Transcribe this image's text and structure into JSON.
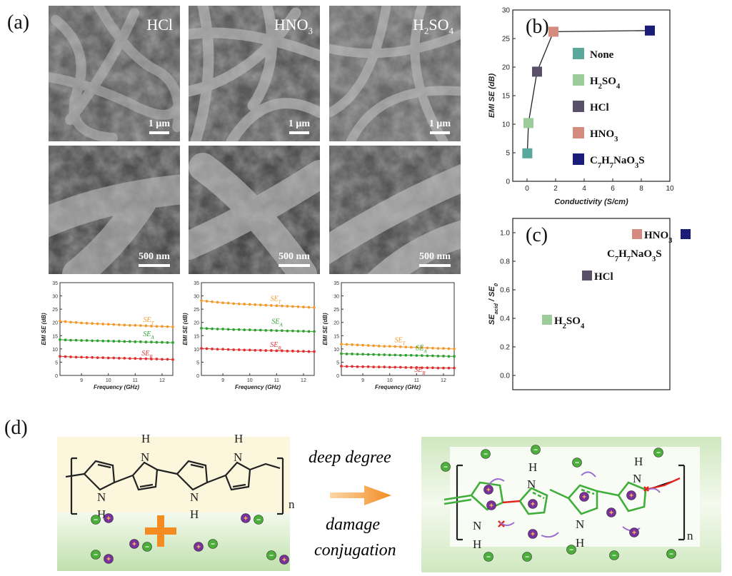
{
  "panel_labels": {
    "a": "(a)",
    "b": "(b)",
    "c": "(c)",
    "d": "(d)"
  },
  "sem": {
    "top_labels": [
      "HCl",
      "HNO",
      "H",
      "SO"
    ],
    "scale_top": "1 μm",
    "scale_mid": "500 nm"
  },
  "chart_data": [
    {
      "type": "line",
      "title": "",
      "xlabel": "Frequency (GHz)",
      "ylabel": "EMI SE (dB)",
      "xlim": [
        8.2,
        12.4
      ],
      "ylim": [
        0,
        35
      ],
      "xticks": [
        9,
        10,
        11,
        12
      ],
      "yticks": [
        0,
        5,
        10,
        15,
        20,
        25,
        30,
        35
      ],
      "x": [
        8.2,
        8.4,
        8.6,
        8.8,
        9.0,
        9.2,
        9.4,
        9.6,
        9.8,
        10.0,
        10.2,
        10.4,
        10.6,
        10.8,
        11.0,
        11.2,
        11.4,
        11.6,
        11.8,
        12.0,
        12.2,
        12.4
      ],
      "series": [
        {
          "name": "SE_T",
          "color": "#f39a2e",
          "values": [
            20.5,
            20.3,
            20.1,
            20.0,
            19.8,
            19.7,
            19.6,
            19.5,
            19.4,
            19.3,
            19.2,
            19.1,
            19.0,
            18.9,
            18.9,
            18.8,
            18.7,
            18.6,
            18.5,
            18.5,
            18.4,
            18.3
          ]
        },
        {
          "name": "SE_A",
          "color": "#2fa12f",
          "values": [
            13.5,
            13.4,
            13.3,
            13.3,
            13.2,
            13.2,
            13.1,
            13.1,
            13.0,
            13.0,
            12.9,
            12.9,
            12.8,
            12.8,
            12.7,
            12.7,
            12.6,
            12.6,
            12.5,
            12.5,
            12.4,
            12.4
          ]
        },
        {
          "name": "SE_R",
          "color": "#e03030",
          "values": [
            7.2,
            7.1,
            7.0,
            6.9,
            6.9,
            6.8,
            6.8,
            6.7,
            6.7,
            6.6,
            6.6,
            6.5,
            6.5,
            6.4,
            6.4,
            6.3,
            6.3,
            6.2,
            6.2,
            6.1,
            6.1,
            6.0
          ]
        }
      ]
    },
    {
      "type": "line",
      "title": "",
      "xlabel": "Frequency (GHz)",
      "ylabel": "EMI SE (dB)",
      "xlim": [
        8.2,
        12.4
      ],
      "ylim": [
        0,
        35
      ],
      "xticks": [
        9,
        10,
        11,
        12
      ],
      "yticks": [
        0,
        5,
        10,
        15,
        20,
        25,
        30,
        35
      ],
      "x": [
        8.2,
        8.4,
        8.6,
        8.8,
        9.0,
        9.2,
        9.4,
        9.6,
        9.8,
        10.0,
        10.2,
        10.4,
        10.6,
        10.8,
        11.0,
        11.2,
        11.4,
        11.6,
        11.8,
        12.0,
        12.2,
        12.4
      ],
      "series": [
        {
          "name": "SE_T",
          "color": "#f39a2e",
          "values": [
            28.2,
            28.0,
            27.8,
            27.6,
            27.4,
            27.3,
            27.1,
            27.0,
            26.9,
            26.8,
            26.7,
            26.6,
            26.5,
            26.4,
            26.3,
            26.2,
            26.1,
            26.0,
            25.9,
            25.8,
            25.7,
            25.6
          ]
        },
        {
          "name": "SE_A",
          "color": "#2fa12f",
          "values": [
            17.8,
            17.7,
            17.6,
            17.5,
            17.5,
            17.4,
            17.3,
            17.3,
            17.2,
            17.2,
            17.1,
            17.1,
            17.0,
            17.0,
            16.9,
            16.9,
            16.8,
            16.8,
            16.7,
            16.7,
            16.6,
            16.6
          ]
        },
        {
          "name": "SE_R",
          "color": "#e03030",
          "values": [
            10.2,
            10.1,
            10.0,
            9.9,
            9.9,
            9.8,
            9.7,
            9.7,
            9.6,
            9.6,
            9.5,
            9.5,
            9.4,
            9.4,
            9.3,
            9.3,
            9.2,
            9.2,
            9.1,
            9.1,
            9.0,
            9.0
          ]
        }
      ]
    },
    {
      "type": "line",
      "title": "",
      "xlabel": "Frequency (GHz)",
      "ylabel": "EMI SE (dB)",
      "xlim": [
        8.2,
        12.4
      ],
      "ylim": [
        0,
        35
      ],
      "xticks": [
        9,
        10,
        11,
        12
      ],
      "yticks": [
        0,
        5,
        10,
        15,
        20,
        25,
        30,
        35
      ],
      "x": [
        8.2,
        8.4,
        8.6,
        8.8,
        9.0,
        9.2,
        9.4,
        9.6,
        9.8,
        10.0,
        10.2,
        10.4,
        10.6,
        10.8,
        11.0,
        11.2,
        11.4,
        11.6,
        11.8,
        12.0,
        12.2,
        12.4
      ],
      "series": [
        {
          "name": "SE_T",
          "color": "#f39a2e",
          "values": [
            11.8,
            11.7,
            11.6,
            11.5,
            11.4,
            11.3,
            11.2,
            11.1,
            11.0,
            11.0,
            10.9,
            10.8,
            10.7,
            10.6,
            10.6,
            10.5,
            10.4,
            10.3,
            10.2,
            10.2,
            10.1,
            10.0
          ]
        },
        {
          "name": "SE_A",
          "color": "#2fa12f",
          "values": [
            8.2,
            8.1,
            8.1,
            8.0,
            8.0,
            7.9,
            7.9,
            7.8,
            7.8,
            7.7,
            7.7,
            7.6,
            7.6,
            7.6,
            7.5,
            7.5,
            7.4,
            7.4,
            7.3,
            7.3,
            7.2,
            7.2
          ]
        },
        {
          "name": "SE_R",
          "color": "#e03030",
          "values": [
            3.5,
            3.4,
            3.4,
            3.3,
            3.3,
            3.3,
            3.2,
            3.2,
            3.2,
            3.1,
            3.1,
            3.1,
            3.0,
            3.0,
            3.0,
            2.9,
            2.9,
            2.9,
            2.8,
            2.8,
            2.8,
            2.8
          ]
        }
      ]
    },
    {
      "type": "scatter",
      "title": "",
      "xlabel": "Conductivity (S/cm)",
      "ylabel": "EMI SE (dB)",
      "xlim": [
        -1,
        10
      ],
      "ylim": [
        0,
        30
      ],
      "xticks": [
        0,
        2,
        4,
        6,
        8,
        10
      ],
      "yticks": [
        0,
        5,
        10,
        15,
        20,
        25,
        30
      ],
      "points": [
        {
          "name": "None",
          "x": 0.02,
          "y": 4.9,
          "color": "#5aa89c"
        },
        {
          "name": "H2SO4",
          "x": 0.1,
          "y": 10.2,
          "color": "#9ccc9a"
        },
        {
          "name": "HCl",
          "x": 0.7,
          "y": 19.2,
          "color": "#575068"
        },
        {
          "name": "HNO3",
          "x": 1.85,
          "y": 26.2,
          "color": "#d48a7c"
        },
        {
          "name": "C7H7NaO3S",
          "x": 8.6,
          "y": 26.4,
          "color": "#1b1b78"
        }
      ],
      "legend": [
        {
          "label": "None",
          "color": "#5aa89c"
        },
        {
          "label": "H",
          "sub": "2",
          "label2": "SO",
          "sub2": "4",
          "color": "#9ccc9a"
        },
        {
          "label": "HCl",
          "color": "#575068"
        },
        {
          "label": "HNO",
          "sub": "3",
          "color": "#d48a7c"
        },
        {
          "label": "C",
          "sub": "7",
          "label2": "H",
          "sub2": "7",
          "label3": "NaO",
          "sub3": "3",
          "label4": "S",
          "color": "#1b1b78"
        }
      ]
    },
    {
      "type": "scatter",
      "title": "",
      "xlabel": "",
      "ylabel": "SE_acid / SE_0",
      "ylim": [
        -0.1,
        1.1
      ],
      "yticks": [
        0.0,
        0.2,
        0.4,
        0.6,
        0.8,
        1.0
      ],
      "points": [
        {
          "name": "H2SO4",
          "x": 0,
          "y": 0.39,
          "color": "#9ccc9a"
        },
        {
          "name": "HCl",
          "x": 1,
          "y": 0.7,
          "color": "#575068"
        },
        {
          "name": "HNO3",
          "x": 2,
          "y": 0.99,
          "color": "#d48a7c"
        },
        {
          "name": "C7H7NaO3S",
          "x": 3,
          "y": 0.99,
          "color": "#1b1b78"
        }
      ]
    }
  ],
  "scheme": {
    "arrow_text_top": "deep degree",
    "arrow_text_bottom_1": "damage",
    "arrow_text_bottom_2": "conjugation",
    "subscript_n": "n",
    "atom_N": "N",
    "atom_H": "H",
    "minus_sign": "−",
    "plus_sign": "+"
  },
  "colors": {
    "ion_green": "#4cae3b",
    "ion_purple": "#7a2f9e",
    "arrow_orange": "#f48c22",
    "polymer_green": "#3fae3a",
    "bond_red": "#e0261e",
    "cream": "#fbf6dc",
    "bg_green": "#cfe8c0"
  }
}
